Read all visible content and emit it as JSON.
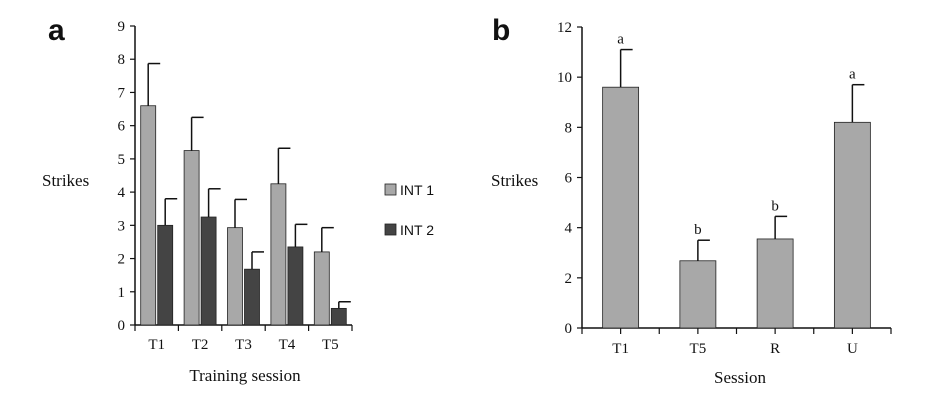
{
  "chart_data": [
    {
      "panel_label": "a",
      "type": "bar",
      "categories": [
        "T1",
        "T2",
        "T3",
        "T4",
        "T5"
      ],
      "series": [
        {
          "name": "INT 1",
          "values": [
            6.6,
            5.25,
            2.93,
            4.25,
            2.2
          ],
          "errors": [
            1.27,
            1.0,
            0.85,
            1.07,
            0.73
          ],
          "color": "#a8a8a8"
        },
        {
          "name": "INT 2",
          "values": [
            3.0,
            3.25,
            1.68,
            2.35,
            0.5
          ],
          "errors": [
            0.8,
            0.85,
            0.52,
            0.68,
            0.2
          ],
          "color": "#444444"
        }
      ],
      "xlabel": "Training session",
      "ylabel": "Strikes",
      "ylim": [
        0,
        9
      ],
      "yticks": [
        "0",
        "1",
        "2",
        "3",
        "4",
        "5",
        "6",
        "7",
        "8",
        "9"
      ],
      "legend_position": "right",
      "grid": false
    },
    {
      "panel_label": "b",
      "type": "bar",
      "categories": [
        "T1",
        "T5",
        "R",
        "U"
      ],
      "series": [
        {
          "values": [
            9.6,
            2.68,
            3.55,
            8.2
          ],
          "errors": [
            1.5,
            0.82,
            0.9,
            1.5
          ],
          "color": "#a8a8a8"
        }
      ],
      "annotations": [
        "a",
        "b",
        "b",
        "a"
      ],
      "xlabel": "Session",
      "ylabel": "Strikes",
      "ylim": [
        0,
        12
      ],
      "yticks": [
        "0",
        "2",
        "4",
        "6",
        "8",
        "10",
        "12"
      ],
      "grid": false
    }
  ]
}
